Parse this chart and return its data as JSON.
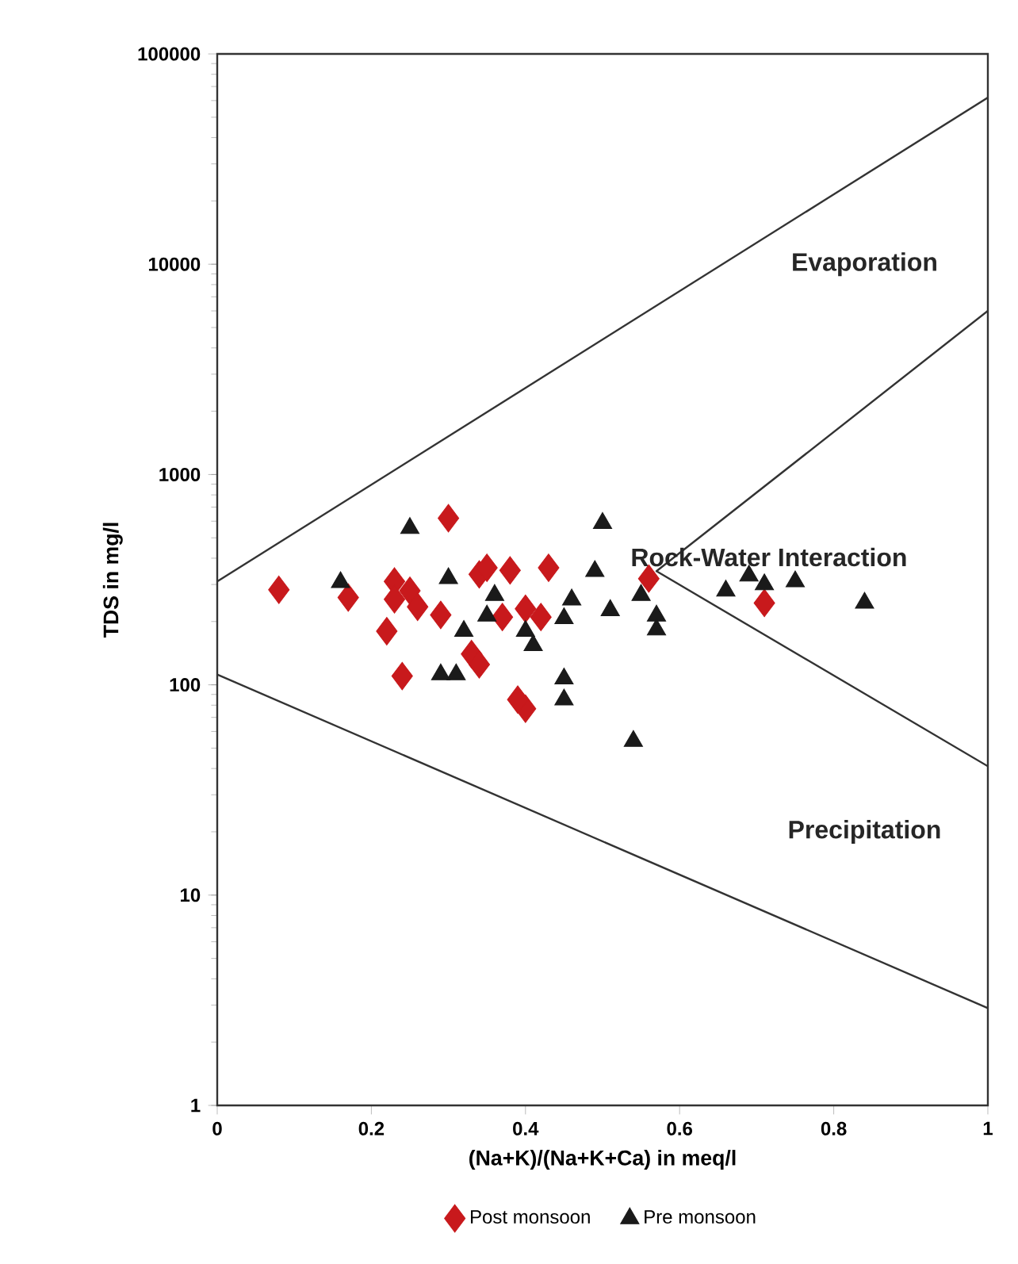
{
  "chart_data": {
    "type": "scatter",
    "xlabel": "(Na+K)/(Na+K+Ca) in meq/l",
    "ylabel": "TDS in mg/l",
    "log": "y",
    "xlim": [
      0,
      1
    ],
    "ylim": [
      1,
      100000
    ],
    "xticks": [
      0,
      0.2,
      0.4,
      0.6,
      0.8,
      1
    ],
    "yticks": [
      1,
      10,
      100,
      1000,
      10000,
      100000
    ],
    "grid": false,
    "legend": "bottom",
    "annotations": [
      "Evaporation",
      "Rock-Water Interaction",
      "Precipitation"
    ],
    "series": [
      {
        "name": "Post monsoon",
        "color": "#c8191c",
        "marker": "diamond",
        "x": [
          0.08,
          0.17,
          0.3,
          0.23,
          0.25,
          0.23,
          0.26,
          0.29,
          0.22,
          0.24,
          0.34,
          0.33,
          0.35,
          0.38,
          0.43,
          0.4,
          0.37,
          0.42,
          0.4,
          0.34,
          0.56,
          0.71,
          0.39
        ],
        "values": [
          283,
          260,
          620,
          310,
          280,
          255,
          235,
          215,
          180,
          110,
          335,
          140,
          360,
          350,
          360,
          230,
          210,
          210,
          77,
          125,
          320,
          245,
          85
        ]
      },
      {
        "name": "Pre monsoon",
        "color": "#1a1a1a",
        "marker": "triangle",
        "x": [
          0.25,
          0.16,
          0.3,
          0.36,
          0.35,
          0.32,
          0.29,
          0.31,
          0.5,
          0.49,
          0.51,
          0.46,
          0.45,
          0.41,
          0.4,
          0.45,
          0.45,
          0.55,
          0.57,
          0.57,
          0.66,
          0.69,
          0.71,
          0.75,
          0.84,
          0.54
        ],
        "values": [
          556,
          307,
          321,
          267,
          213,
          180,
          112,
          112,
          587,
          347,
          226,
          254,
          207,
          154,
          180,
          107,
          85,
          267,
          213,
          183,
          280,
          330,
          300,
          310,
          245,
          54
        ]
      },
      {
        "type": "line",
        "color": "#333333",
        "marker": "none",
        "x": [
          0,
          1
        ],
        "values": [
          310,
          62000
        ]
      },
      {
        "type": "line",
        "color": "#333333",
        "marker": "none",
        "x": [
          1,
          0.57,
          1
        ],
        "values": [
          6000,
          347,
          41
        ]
      },
      {
        "type": "line",
        "color": "#333333",
        "marker": "none",
        "x": [
          0,
          1
        ],
        "values": [
          112,
          2.9
        ]
      }
    ]
  }
}
